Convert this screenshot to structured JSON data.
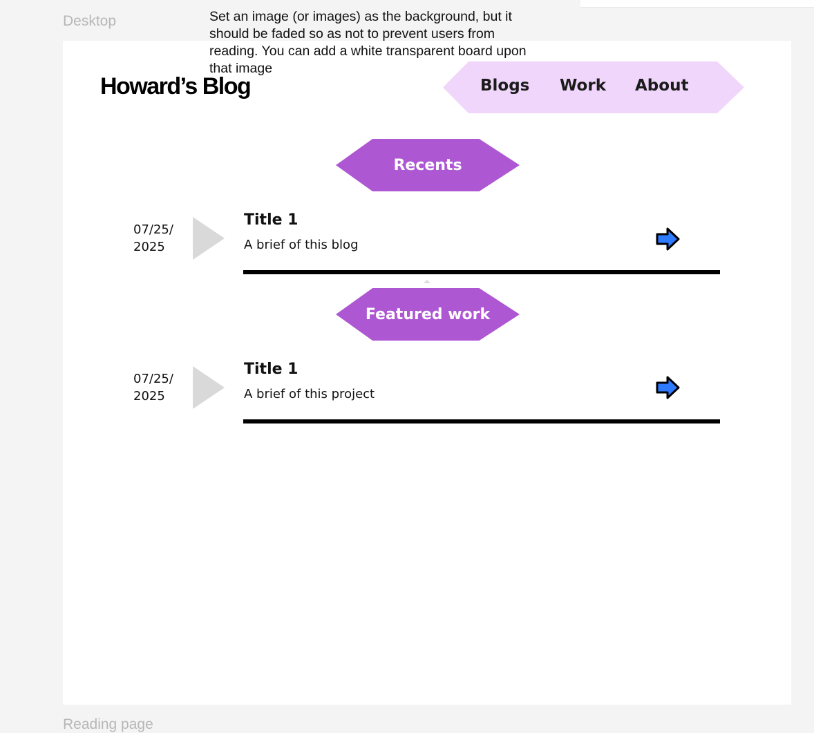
{
  "canvas": {
    "frame_label_top": "Desktop",
    "frame_label_bottom": "Reading page"
  },
  "annotation": {
    "text": "Set an image (or images) as the background, but it should be faded so as not to prevent users from reading. You can add a white transparent board upon that image"
  },
  "header": {
    "logo": "Howard’s Blog",
    "nav": [
      {
        "label": "Blogs"
      },
      {
        "label": "Work"
      },
      {
        "label": "About"
      }
    ]
  },
  "sections": {
    "recents": {
      "label": "Recents",
      "items": [
        {
          "date_line1": "07/25/",
          "date_line2": "2025",
          "title": "Title 1",
          "brief": "A brief of this blog",
          "arrow_icon": "right-arrow-icon"
        }
      ]
    },
    "featured": {
      "label": "Featured work",
      "items": [
        {
          "date_line1": "07/25/",
          "date_line2": "2025",
          "title": "Title 1",
          "brief": "A brief of this project",
          "arrow_icon": "right-arrow-icon"
        }
      ]
    }
  },
  "colors": {
    "accent_purple": "#ae57d3",
    "nav_background": "#f0d6fb",
    "arrow_blue": "#2f7bff",
    "placeholder_gray": "#d9d9d9",
    "canvas_bg": "#f4f4f4"
  }
}
